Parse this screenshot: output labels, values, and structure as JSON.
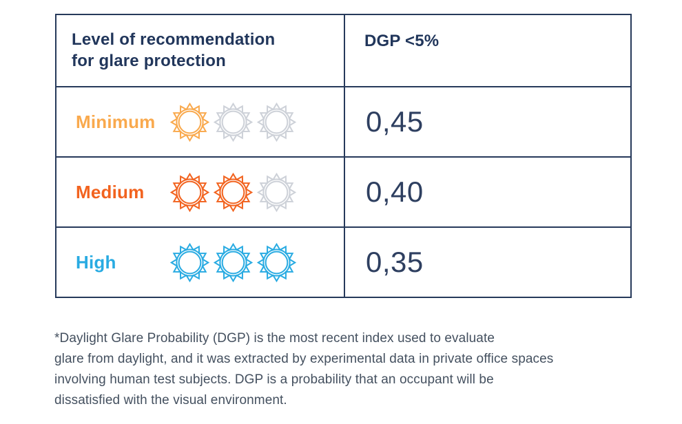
{
  "table": {
    "header": {
      "col1_line1": "Level of recommendation",
      "col1_line2": "for glare protection",
      "col2": "DGP <5%"
    },
    "inactive_sun_color": "#CDD1D8",
    "rows": [
      {
        "label": "Minimum",
        "color": "#F9A94D",
        "active_suns": 1,
        "total_suns": 3,
        "value": "0,45"
      },
      {
        "label": "Medium",
        "color": "#F2631F",
        "active_suns": 2,
        "total_suns": 3,
        "value": "0,40"
      },
      {
        "label": "High",
        "color": "#29ABE2",
        "active_suns": 3,
        "total_suns": 3,
        "value": "0,35"
      }
    ]
  },
  "footnote": {
    "lines": [
      "*Daylight Glare Probability (DGP) is the most recent index used to evaluate",
      "glare from daylight, and it was extracted by experimental data in private office spaces",
      "involving human test subjects.  DGP is a probability that an occupant will be",
      "dissatisfied with the visual environment."
    ]
  },
  "colors": {
    "border_navy": "#26395A",
    "heading_navy": "#21365B",
    "value_navy": "#2E3F60",
    "footnote_gray": "#44505F"
  }
}
